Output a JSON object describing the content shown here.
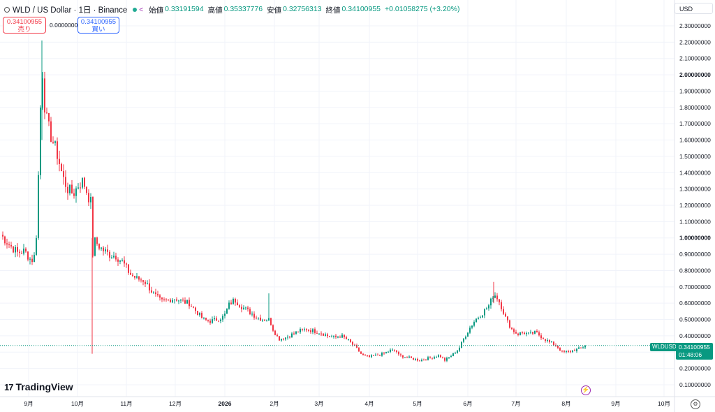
{
  "header": {
    "symbol_line": "WLD / US Dollar · 1日 · Binance",
    "ohlc": [
      {
        "key": "始値",
        "value": "0.33191594"
      },
      {
        "key": "高値",
        "value": "0.35337776"
      },
      {
        "key": "安値",
        "value": "0.32756313"
      },
      {
        "key": "終値",
        "value": "0.34100955"
      }
    ],
    "change": "+0.01058275 (+3.20%)"
  },
  "trade": {
    "sell_price": "0.34100955",
    "sell_label": "売り",
    "spread": "0.00000000",
    "buy_price": "0.34100955",
    "buy_label": "買い"
  },
  "currency": "USD",
  "last_price": {
    "symbol": "WLDUSD",
    "price": "0.34100955",
    "countdown": "01:48:06"
  },
  "brand": "TradingView",
  "colors": {
    "up": "#089981",
    "down": "#f23645",
    "accent": "#2962ff"
  },
  "chart_data": {
    "type": "candlestick",
    "interval": "1日",
    "y_ticks": [
      "0.10000000",
      "0.20000000",
      "0.30000000",
      "0.40000000",
      "0.50000000",
      "0.60000000",
      "0.70000000",
      "0.80000000",
      "0.90000000",
      "1.00000000",
      "1.10000000",
      "1.20000000",
      "1.30000000",
      "1.40000000",
      "1.50000000",
      "1.60000000",
      "1.70000000",
      "1.80000000",
      "1.90000000",
      "2.00000000",
      "2.10000000",
      "2.20000000",
      "2.30000000"
    ],
    "x_ticks": [
      "9月",
      "10月",
      "11月",
      "12月",
      "2026",
      "2月",
      "3月",
      "4月",
      "5月",
      "6月",
      "7月",
      "8月",
      "9月",
      "10月"
    ],
    "ylim": [
      0.05,
      2.4
    ],
    "grid": true,
    "last_close": 0.34100955,
    "trend_close": [
      [
        0,
        1.02
      ],
      [
        12,
        0.96
      ],
      [
        24,
        0.91
      ],
      [
        34,
        0.92
      ],
      [
        44,
        0.86
      ],
      [
        50,
        0.9
      ],
      [
        55,
        1.5
      ],
      [
        57,
        1.8
      ],
      [
        59,
        2.1
      ],
      [
        62,
        1.85
      ],
      [
        66,
        1.72
      ],
      [
        70,
        1.65
      ],
      [
        74,
        1.6
      ],
      [
        78,
        1.55
      ],
      [
        82,
        1.5
      ],
      [
        86,
        1.42
      ],
      [
        90,
        1.36
      ],
      [
        96,
        1.3
      ],
      [
        104,
        1.27
      ],
      [
        112,
        1.33
      ],
      [
        118,
        1.35
      ],
      [
        122,
        1.3
      ],
      [
        126,
        1.25
      ],
      [
        129,
        1.22
      ],
      [
        131,
        0.88
      ],
      [
        135,
        0.98
      ],
      [
        145,
        0.93
      ],
      [
        155,
        0.9
      ],
      [
        165,
        0.89
      ],
      [
        175,
        0.85
      ],
      [
        185,
        0.78
      ],
      [
        195,
        0.75
      ],
      [
        205,
        0.74
      ],
      [
        212,
        0.7
      ],
      [
        220,
        0.65
      ],
      [
        230,
        0.61
      ],
      [
        240,
        0.62
      ],
      [
        250,
        0.63
      ],
      [
        260,
        0.61
      ],
      [
        270,
        0.6
      ],
      [
        280,
        0.55
      ],
      [
        290,
        0.5
      ],
      [
        300,
        0.49
      ],
      [
        310,
        0.5
      ],
      [
        320,
        0.52
      ],
      [
        328,
        0.6
      ],
      [
        335,
        0.62
      ],
      [
        345,
        0.58
      ],
      [
        355,
        0.55
      ],
      [
        365,
        0.52
      ],
      [
        375,
        0.5
      ],
      [
        385,
        0.5
      ],
      [
        390,
        0.44
      ],
      [
        398,
        0.38
      ],
      [
        408,
        0.39
      ],
      [
        418,
        0.41
      ],
      [
        428,
        0.43
      ],
      [
        438,
        0.44
      ],
      [
        448,
        0.43
      ],
      [
        458,
        0.42
      ],
      [
        468,
        0.4
      ],
      [
        478,
        0.39
      ],
      [
        488,
        0.4
      ],
      [
        498,
        0.37
      ],
      [
        508,
        0.33
      ],
      [
        518,
        0.28
      ],
      [
        528,
        0.27
      ],
      [
        538,
        0.28
      ],
      [
        548,
        0.29
      ],
      [
        558,
        0.31
      ],
      [
        566,
        0.31
      ],
      [
        570,
        0.28
      ],
      [
        580,
        0.27
      ],
      [
        590,
        0.26
      ],
      [
        600,
        0.25
      ],
      [
        610,
        0.26
      ],
      [
        620,
        0.27
      ],
      [
        628,
        0.28
      ],
      [
        636,
        0.25
      ],
      [
        646,
        0.28
      ],
      [
        656,
        0.32
      ],
      [
        664,
        0.39
      ],
      [
        672,
        0.45
      ],
      [
        680,
        0.5
      ],
      [
        690,
        0.54
      ],
      [
        700,
        0.59
      ],
      [
        706,
        0.66
      ],
      [
        712,
        0.63
      ],
      [
        718,
        0.57
      ],
      [
        724,
        0.5
      ],
      [
        732,
        0.44
      ],
      [
        740,
        0.41
      ],
      [
        748,
        0.42
      ],
      [
        756,
        0.41
      ],
      [
        766,
        0.42
      ],
      [
        776,
        0.39
      ],
      [
        786,
        0.36
      ],
      [
        796,
        0.34
      ],
      [
        804,
        0.3
      ],
      [
        812,
        0.3
      ],
      [
        820,
        0.31
      ],
      [
        828,
        0.32
      ],
      [
        838,
        0.341
      ]
    ]
  }
}
